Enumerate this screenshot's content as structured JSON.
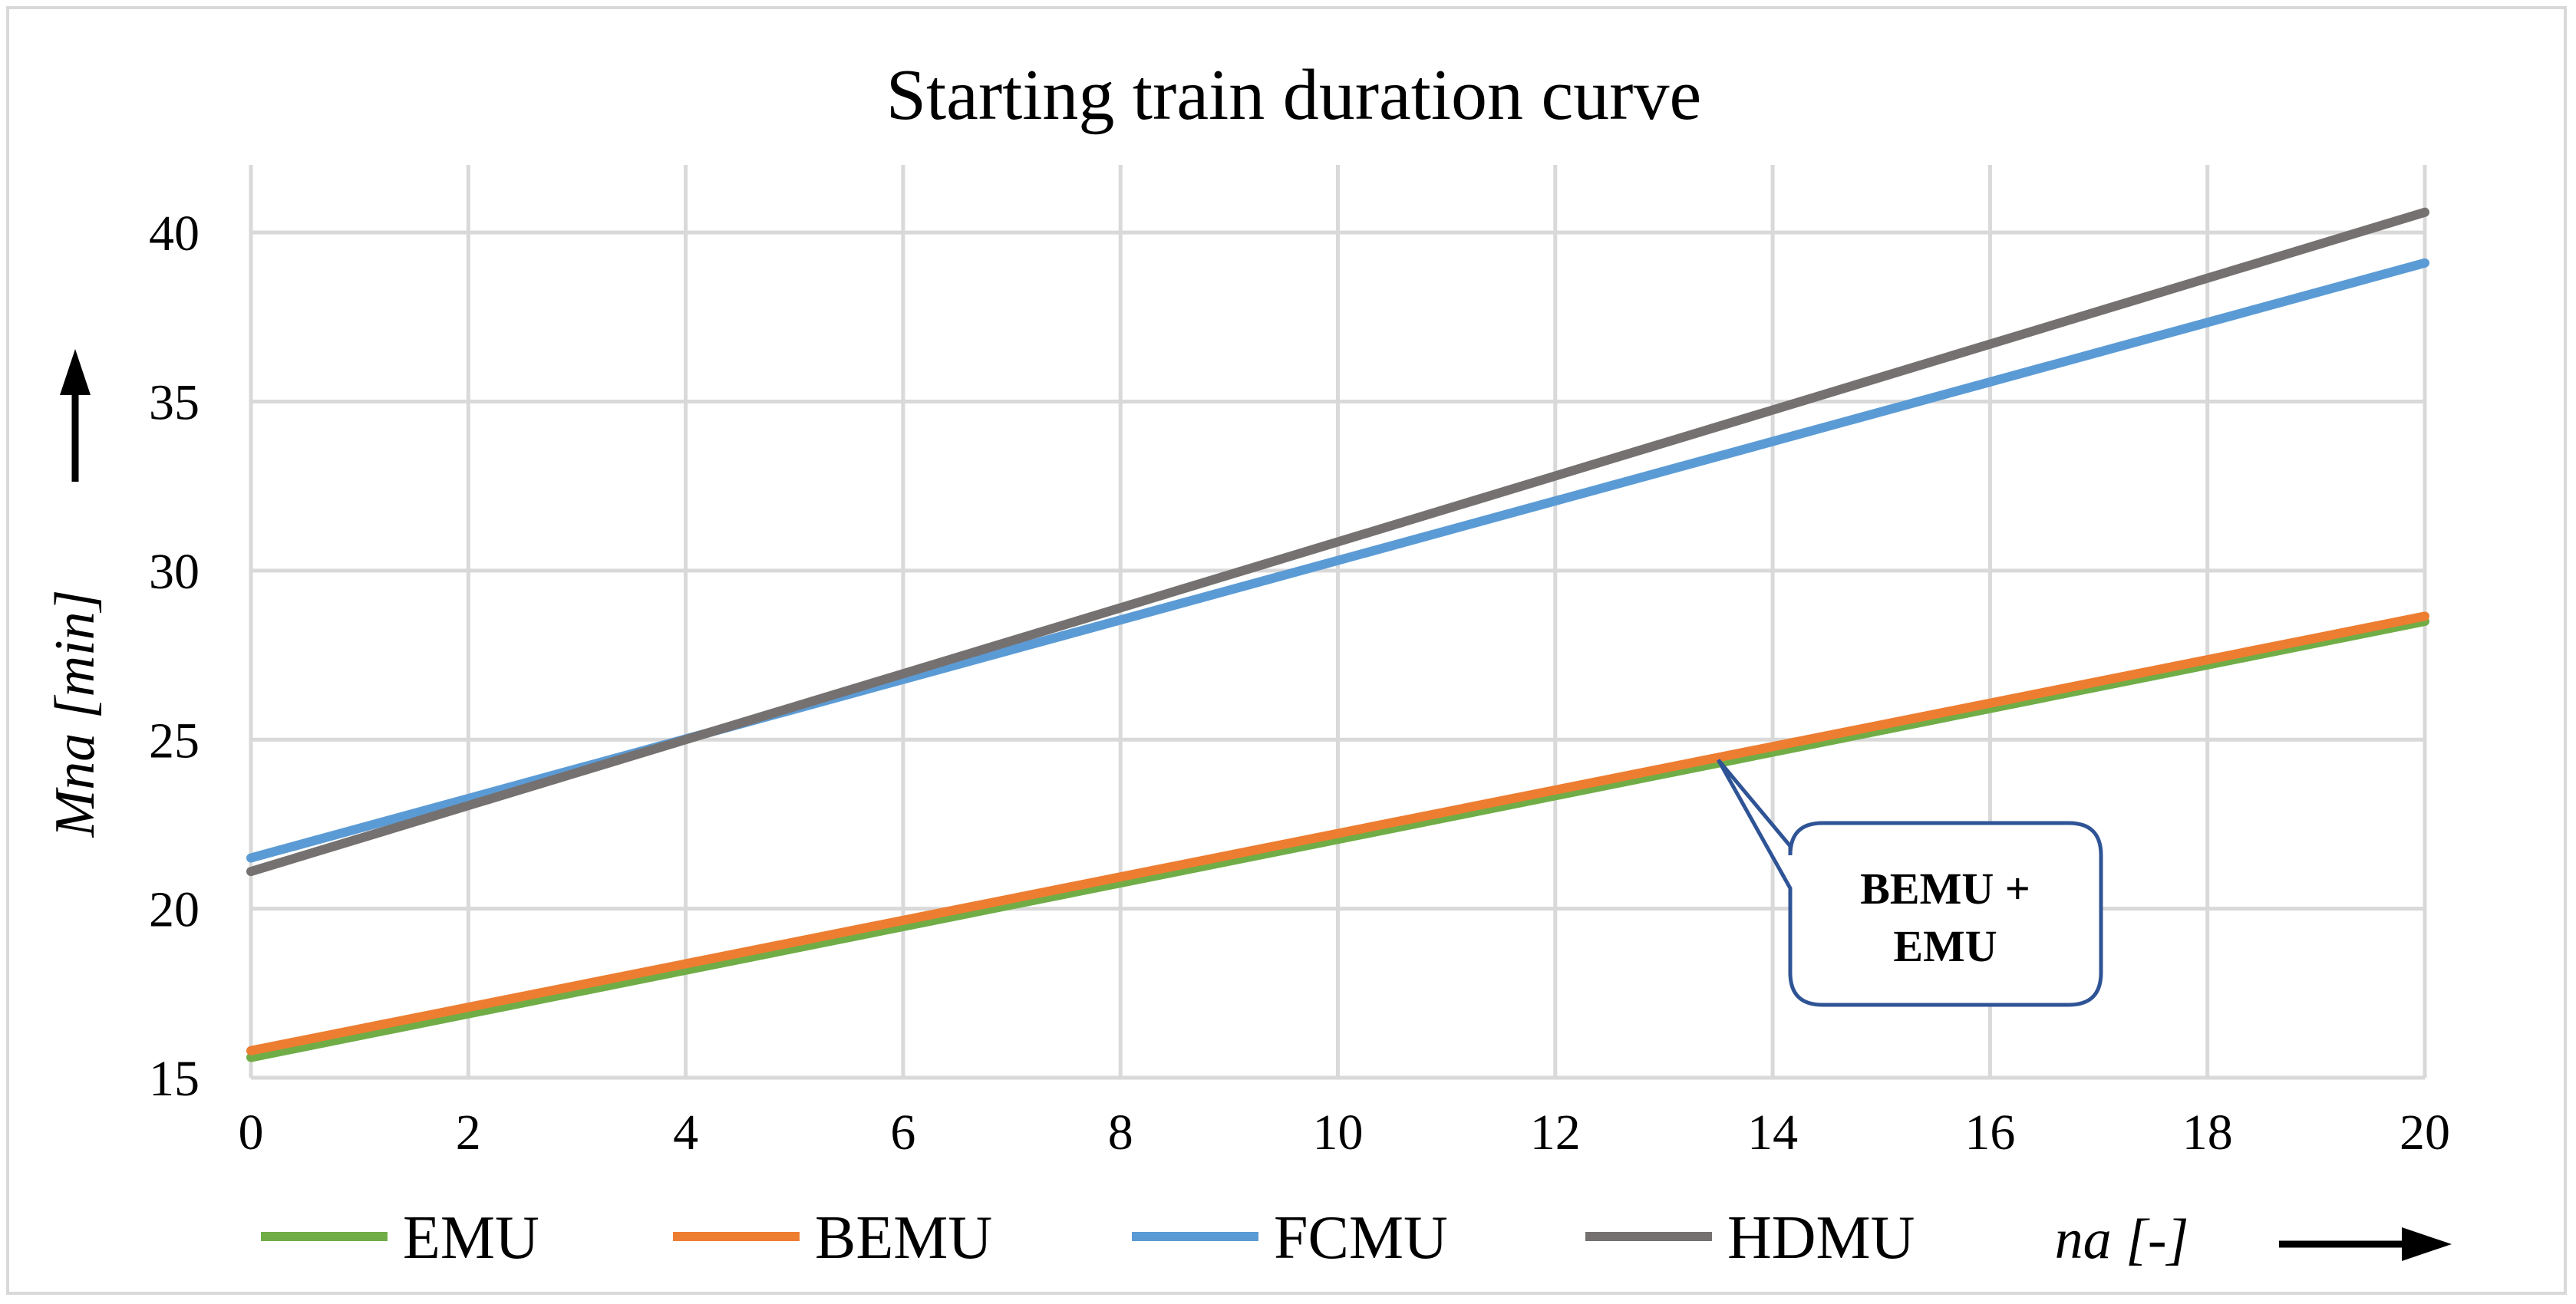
{
  "chart_data": {
    "type": "line",
    "title": "Starting train duration curve",
    "xlabel": "na [-]",
    "ylabel": "Mna [min]",
    "xlim": [
      0,
      20
    ],
    "ylim": [
      15,
      42
    ],
    "x_ticks": [
      0,
      2,
      4,
      6,
      8,
      10,
      12,
      14,
      16,
      18,
      20
    ],
    "y_ticks": [
      15,
      20,
      25,
      30,
      35,
      40
    ],
    "grid": true,
    "legend_position": "bottom",
    "x": [
      0,
      20
    ],
    "series": [
      {
        "name": "EMU",
        "color": "#70ad47",
        "values": [
          15.6,
          28.5
        ]
      },
      {
        "name": "BEMU",
        "color": "#ed7d31",
        "values": [
          15.8,
          28.65
        ]
      },
      {
        "name": "FCMU",
        "color": "#5b9bd5",
        "values": [
          21.5,
          39.1
        ]
      },
      {
        "name": "HDMU",
        "color": "#757171",
        "values": [
          21.1,
          40.6
        ]
      }
    ],
    "annotation": {
      "text_line1": "BEMU +",
      "text_line2": "EMU",
      "points_to": {
        "x": 13.5,
        "y": 24.4
      },
      "border_color": "#2f5496"
    }
  }
}
